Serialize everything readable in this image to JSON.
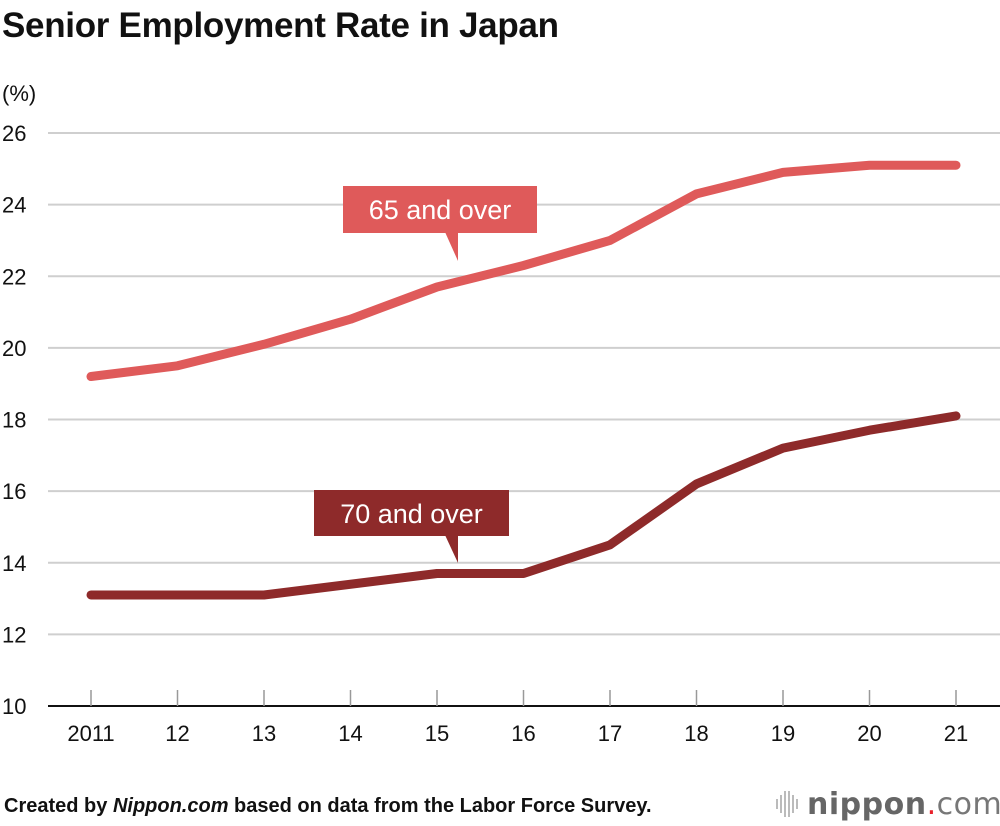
{
  "title": "Senior Employment Rate in Japan",
  "footer": {
    "prefix": "Created by ",
    "source_name": "Nippon.com",
    "suffix": " based on data from the Labor Force Survey."
  },
  "logo": {
    "text": "nippon.com",
    "icon": "sound-wave-bars-icon",
    "dot_color": "#e8202a"
  },
  "chart_data": {
    "type": "line",
    "title": "Senior Employment Rate in Japan",
    "ylabel": "(%)",
    "xlabel": "",
    "ylim": [
      10,
      26
    ],
    "yticks": [
      10,
      12,
      14,
      16,
      18,
      20,
      22,
      24,
      26
    ],
    "grid": true,
    "categories": [
      "2011",
      "12",
      "13",
      "14",
      "15",
      "16",
      "17",
      "18",
      "19",
      "20",
      "21"
    ],
    "series": [
      {
        "name": "65 and over",
        "color": "#df5a5a",
        "values": [
          19.2,
          19.5,
          20.1,
          20.8,
          21.7,
          22.3,
          23.0,
          24.3,
          24.9,
          25.1,
          25.1
        ]
      },
      {
        "name": "70 and over",
        "color": "#8e2a2a",
        "values": [
          13.1,
          13.1,
          13.1,
          13.4,
          13.7,
          13.7,
          14.5,
          16.2,
          17.2,
          17.7,
          18.1
        ]
      }
    ]
  }
}
